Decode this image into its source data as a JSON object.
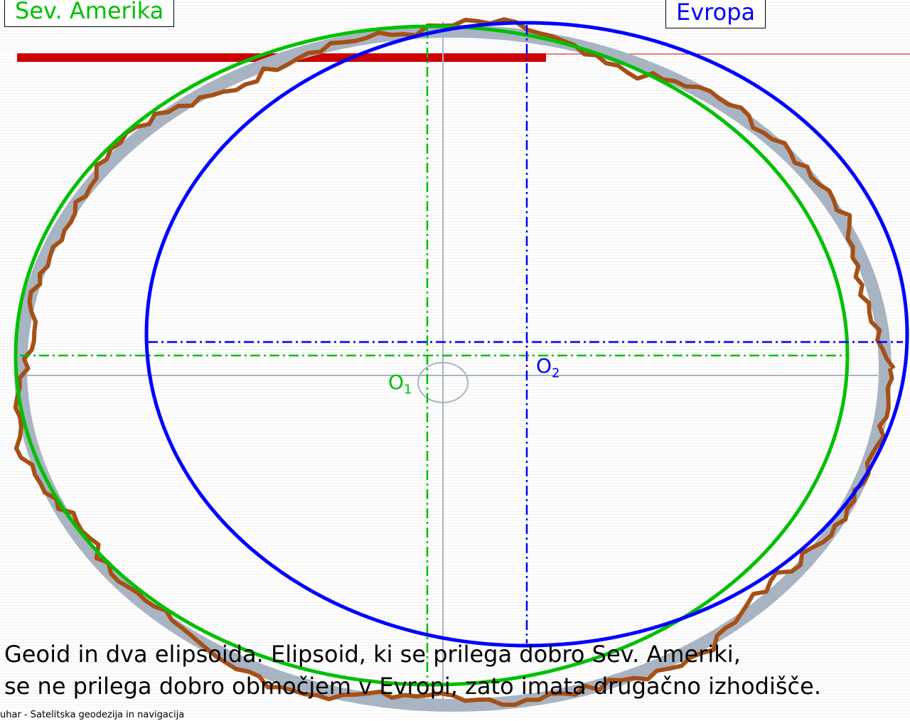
{
  "labels": {
    "north_america": "Sev. Amerika",
    "europe": "Evropa",
    "origin_1": "O",
    "origin_1_sub": "1",
    "origin_2": "O",
    "origin_2_sub": "2"
  },
  "caption": {
    "line1": "Geoid in dva elipsoida. Elipsoid, ki se prilega dobro Sev. Ameriki,",
    "line2": "se ne prilega dobro območjem v Evropi, zato imata drugačno izhodišče."
  },
  "footer": "uhar - Satelitska geodezija in navigacija",
  "colors": {
    "geoid": "#a55016",
    "reference_ellipse": "#a8b4c2",
    "ellipsoid_north_america": "#00c000",
    "ellipsoid_europe": "#0000ff",
    "highlight_bar": "#cc0000"
  }
}
